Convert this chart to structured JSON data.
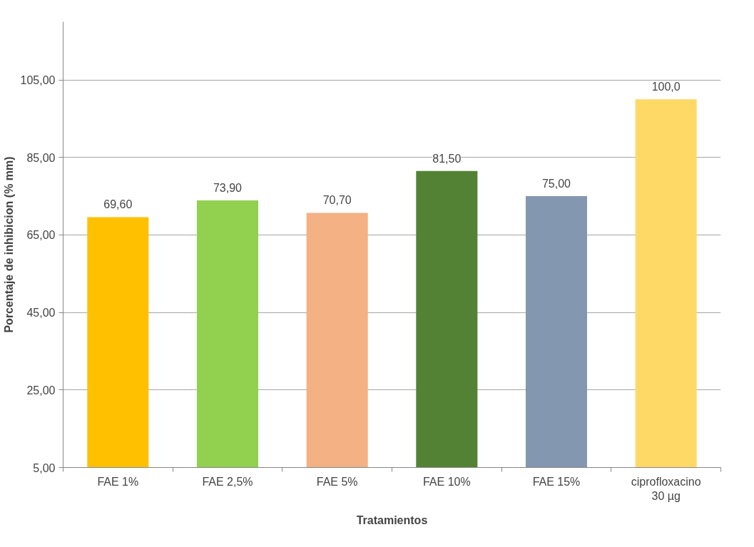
{
  "chart_data": {
    "type": "bar",
    "xlabel": "Tratamientos",
    "ylabel": "Porcentaje de inhibicion (% mm)",
    "categories": [
      "FAE 1%",
      "FAE 2,5%",
      "FAE 5%",
      "FAE 10%",
      "FAE 15%",
      "ciprofloxacino\n30 µg"
    ],
    "values": [
      69.6,
      73.9,
      70.7,
      81.5,
      75.0,
      100.0
    ],
    "colors": [
      "#ffc000",
      "#92d050",
      "#f4b183",
      "#548235",
      "#8497b0",
      "#ffd966"
    ],
    "value_labels": [
      "69,60",
      "73,90",
      "70,70",
      "81,50",
      "75,00",
      "100,0"
    ],
    "ylim": [
      5,
      120
    ],
    "yticks": [
      {
        "value": 5,
        "label": "5,00"
      },
      {
        "value": 25,
        "label": "25,00"
      },
      {
        "value": 45,
        "label": "45,00"
      },
      {
        "value": 65,
        "label": "65,00"
      },
      {
        "value": 85,
        "label": "85,00"
      },
      {
        "value": 105,
        "label": "105,00"
      }
    ],
    "grid": "y"
  }
}
